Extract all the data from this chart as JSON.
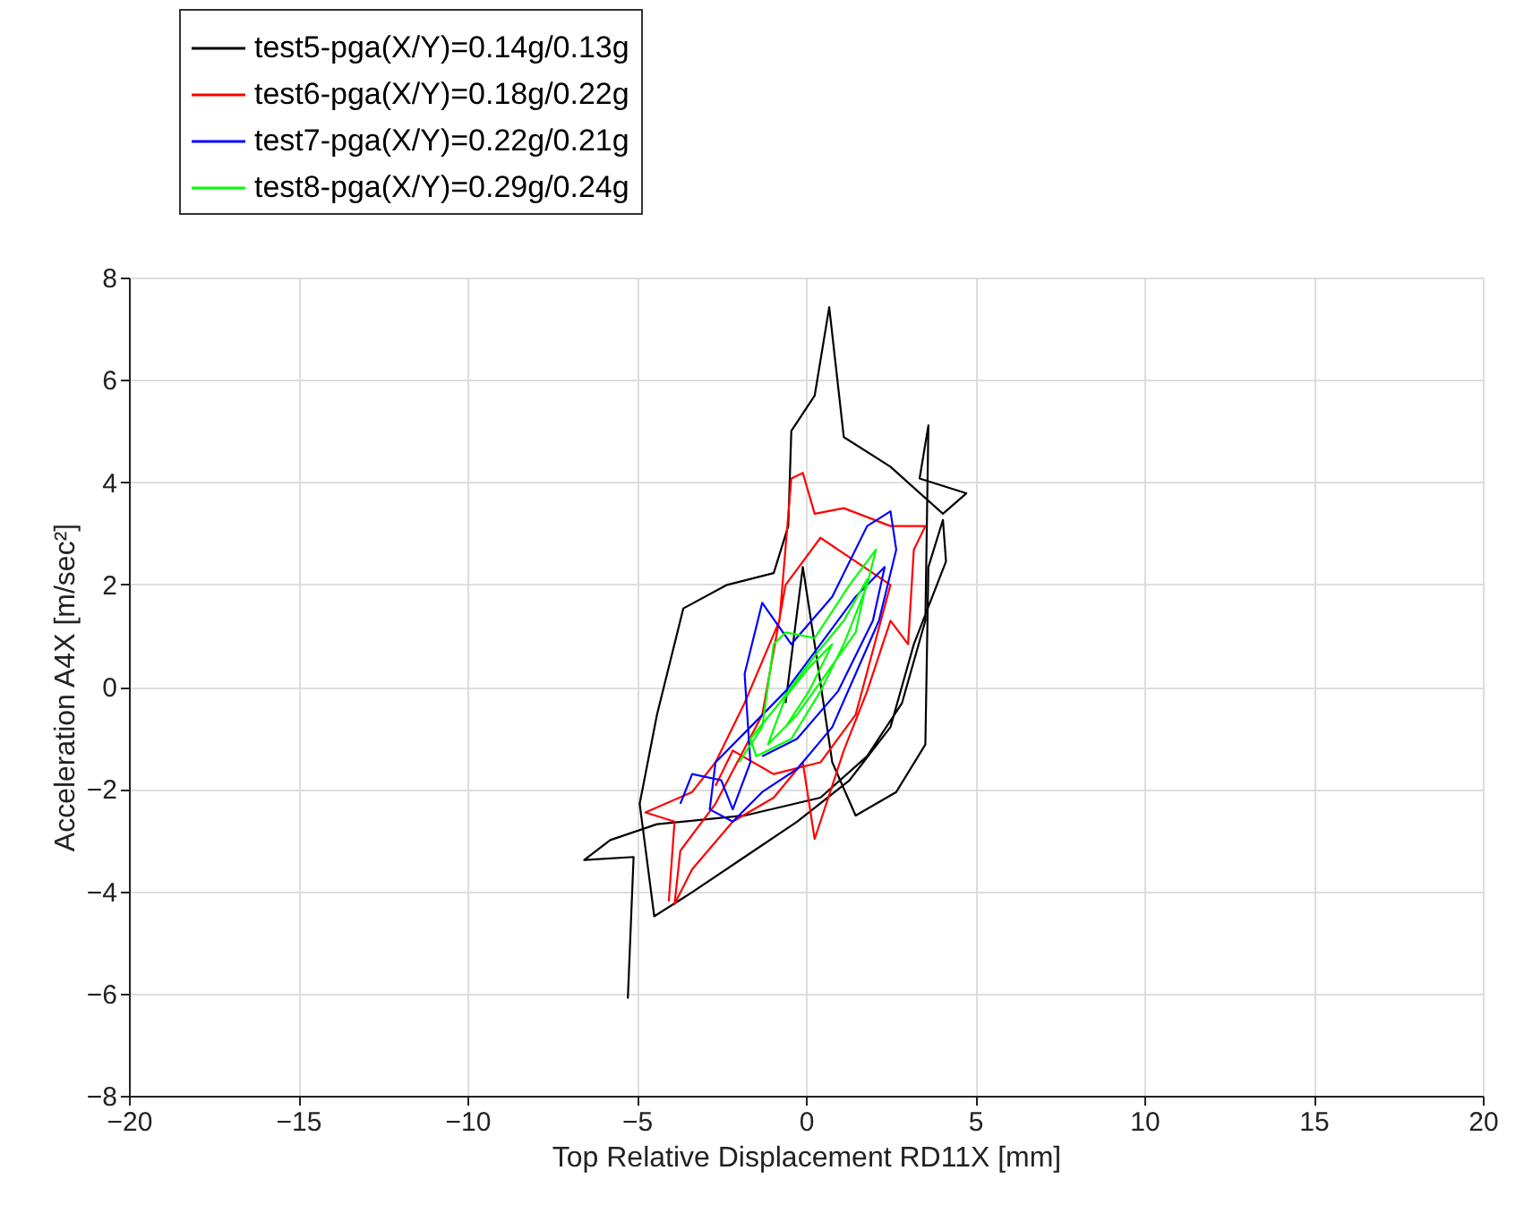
{
  "chart_data": {
    "type": "line",
    "xlabel": "Top Relative Displacement RD11X [mm]",
    "ylabel": "Acceleration A4X [m/sec²]",
    "xlim": [
      -20,
      20
    ],
    "xticks": [
      -20,
      -15,
      -10,
      -5,
      0,
      5,
      10,
      15,
      20
    ],
    "ylim": [
      -8,
      8
    ],
    "yticks": [
      -8,
      -6,
      -4,
      -2,
      0,
      2,
      4,
      6,
      8
    ],
    "grid": true,
    "legend": "top left",
    "line_style": "solid",
    "marker": "none",
    "series": [
      {
        "name": "test5-pga(X/Y)=0.14g/0.13g",
        "color": "#000000",
        "x": [
          -5.26,
          -5.09,
          -6.55,
          -5.78,
          -4.4,
          -1.81,
          0.43,
          1.81,
          2.84,
          3.53,
          3.62,
          3.36,
          4.74,
          4.05,
          2.5,
          1.12,
          0.69,
          0.26,
          -0.43,
          -0.52,
          -0.95,
          -2.33,
          -3.62,
          -4.4,
          -4.91,
          -4.48,
          -3.36,
          -1.81,
          -0.26,
          1.29,
          2.5,
          3.19,
          4.14,
          4.05,
          3.62,
          3.53,
          2.67,
          1.47,
          0.78,
          0.26,
          -0.09,
          -0.6
        ],
        "values": [
          -6.1,
          -3.33,
          -3.39,
          -3.0,
          -2.69,
          -2.52,
          -2.17,
          -1.36,
          -0.32,
          1.29,
          5.11,
          4.07,
          3.78,
          3.38,
          4.3,
          4.88,
          7.42,
          5.69,
          5.0,
          3.14,
          2.22,
          1.99,
          1.53,
          -0.55,
          -2.29,
          -4.49,
          -4.02,
          -3.33,
          -2.64,
          -1.83,
          -0.79,
          0.83,
          2.45,
          3.26,
          2.34,
          -1.13,
          -2.06,
          -2.52,
          -1.48,
          0.83,
          2.34,
          -0.32
        ]
      },
      {
        "name": "test6-pga(X/Y)=0.18g/0.22g",
        "color": "#ff0000",
        "x": [
          -4.05,
          -3.88,
          -4.74,
          -3.36,
          -2.67,
          -1.81,
          -0.78,
          -0.43,
          -0.09,
          0.26,
          1.12,
          2.5,
          3.53,
          3.19,
          3.02,
          2.5,
          1.81,
          1.12,
          0.26,
          -0.09,
          -0.95,
          -2.16,
          -3.36,
          -3.88,
          -3.71,
          -2.67,
          -1.29,
          -0.6,
          0.43,
          1.47,
          2.5,
          1.47,
          0.43,
          -0.95,
          -2.16,
          -2.67
        ],
        "values": [
          -4.2,
          -2.64,
          -2.46,
          -2.06,
          -1.48,
          -0.32,
          1.29,
          4.07,
          4.18,
          3.38,
          3.49,
          3.14,
          3.14,
          2.68,
          0.83,
          1.29,
          -0.09,
          -1.25,
          -2.98,
          -1.48,
          -2.17,
          -2.64,
          -3.57,
          -4.25,
          -3.21,
          -2.29,
          -0.55,
          1.99,
          2.91,
          2.45,
          1.99,
          -0.55,
          -1.48,
          -1.71,
          -1.25,
          -1.94
        ]
      },
      {
        "name": "test7-pga(X/Y)=0.22g/0.21g",
        "color": "#0000ff",
        "x": [
          -3.71,
          -3.36,
          -2.5,
          -2.16,
          -1.64,
          -1.81,
          -1.29,
          -0.43,
          0.78,
          1.81,
          2.5,
          2.67,
          2.16,
          1.47,
          0.78,
          -0.26,
          -1.29,
          -2.16,
          -2.84,
          -2.67,
          -1.64,
          -0.6,
          0.43,
          1.47,
          2.33,
          1.98,
          0.95,
          -0.26,
          -1.29
        ],
        "values": [
          -2.29,
          -1.71,
          -1.83,
          -2.4,
          -1.48,
          0.25,
          1.64,
          0.83,
          1.76,
          3.14,
          3.43,
          2.68,
          1.29,
          0.25,
          -0.79,
          -1.61,
          -2.06,
          -2.64,
          -2.4,
          -1.48,
          -0.79,
          -0.09,
          0.83,
          1.76,
          2.34,
          1.29,
          -0.09,
          -1.02,
          -1.36
        ]
      },
      {
        "name": "test8-pga(X/Y)=0.29g/0.24g",
        "color": "#00ff00",
        "x": [
          -1.98,
          -1.29,
          -0.95,
          -0.6,
          0.26,
          1.29,
          2.07,
          1.81,
          1.12,
          0.43,
          -0.43,
          -1.47,
          -1.64,
          -0.78,
          0.26,
          1.12,
          1.81,
          1.47,
          0.6,
          -0.26,
          -1.12,
          -0.6,
          0.09,
          0.78,
          0.09,
          -0.6
        ],
        "values": [
          -1.48,
          -0.79,
          0.83,
          1.06,
          0.95,
          1.99,
          2.68,
          1.99,
          0.83,
          -0.09,
          -1.02,
          -1.36,
          -1.02,
          -0.32,
          0.6,
          1.29,
          2.1,
          1.06,
          0.25,
          -0.55,
          -1.13,
          -0.2,
          0.37,
          0.83,
          -0.09,
          -0.79
        ]
      }
    ]
  }
}
